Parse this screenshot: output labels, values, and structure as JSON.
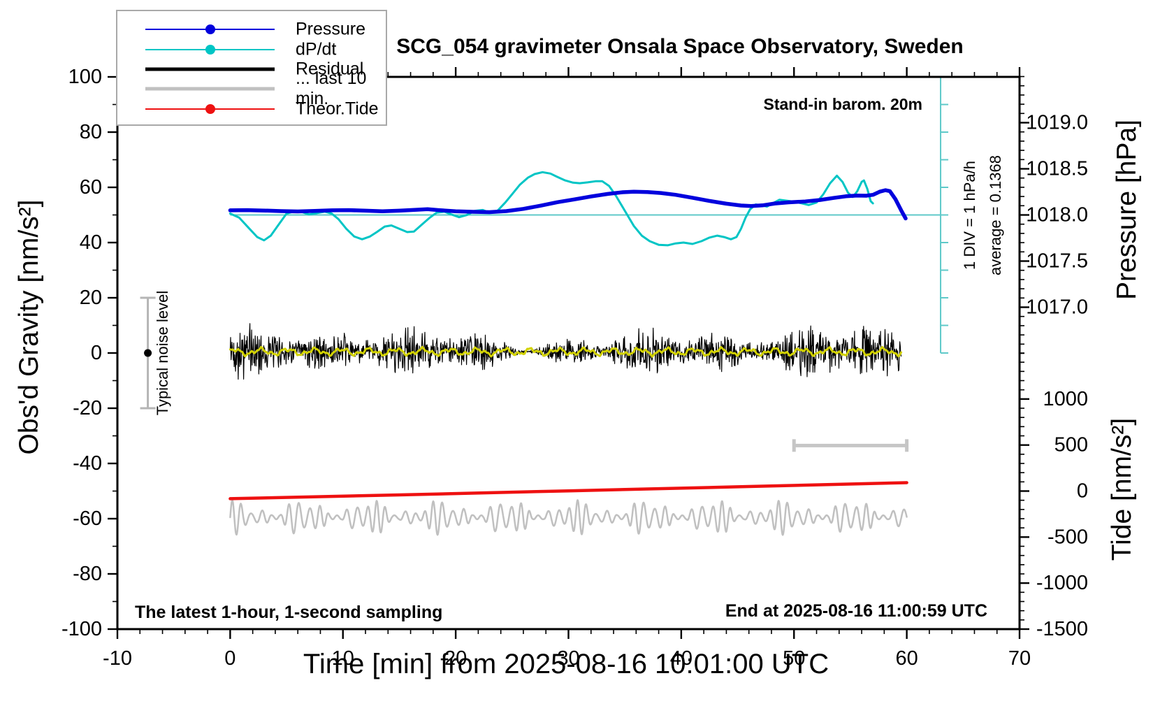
{
  "title": "SCG_054 gravimeter Onsala Space Observatory, Sweden",
  "annotations": {
    "barom": "Stand-in barom. 20m",
    "sampling": "The latest 1-hour, 1-second sampling",
    "end_time": "End at 2025-08-16 11:00:59 UTC",
    "noise_level": "Typical noise level",
    "div_scale": "1 DIV = 1 hPa/h",
    "average": "average = 0.1368"
  },
  "legend": {
    "entries": [
      {
        "label": "Pressure",
        "style": "line-dot",
        "color": "#0101dd"
      },
      {
        "label": "dP/dt",
        "style": "line-dot",
        "color": "#00c5c5"
      },
      {
        "label": "Residual",
        "style": "line-thick",
        "color": "#000000"
      },
      {
        "label": "... last 10 min.",
        "style": "line-thick",
        "color": "#c0c0c0"
      },
      {
        "label": "Theor.Tide",
        "style": "line-dot",
        "color": "#ee1111"
      }
    ]
  },
  "colors": {
    "pressure": "#0101dd",
    "dpdt": "#00c5c5",
    "residual": "#000000",
    "residual_smooth": "#d2d200",
    "last10": "#c0c0c0",
    "tide": "#ee1111",
    "noise_bar": "#b5b5b5",
    "last10_bar": "#c6c6c6",
    "axis": "#000000"
  },
  "chart_data": {
    "type": "line",
    "title": "SCG_054 gravimeter Onsala Space Observatory, Sweden",
    "axes": {
      "x": {
        "title": "Time [min] from 2025-08-16 10:01:00 UTC",
        "min": -10,
        "max": 70,
        "minor_step": 2,
        "major_ticks": [
          -10,
          0,
          10,
          20,
          30,
          40,
          50,
          60,
          70
        ],
        "labels": [
          "-10",
          "0",
          "10",
          "20",
          "30",
          "40",
          "50",
          "60",
          "70"
        ]
      },
      "gravity": {
        "title": "Obs'd Gravity [nm/s²]",
        "min": -100,
        "max": 100,
        "minor_step": 10,
        "major_ticks": [
          -100,
          -80,
          -60,
          -40,
          -20,
          0,
          20,
          40,
          60,
          80,
          100
        ],
        "labels": [
          "-100",
          "-80",
          "-60",
          "-40",
          "-20",
          "0",
          "20",
          "40",
          "60",
          "80",
          "100"
        ]
      },
      "pressure": {
        "title": "Pressure [hPa]",
        "range": [
          1016.5,
          1019.5
        ],
        "minor_step": 0.1,
        "major_ticks": [
          1017.0,
          1017.5,
          1018.0,
          1018.5,
          1019.0
        ],
        "labels": [
          "1017.0",
          "1017.5",
          "1018.0",
          "1018.5",
          "1019.0"
        ]
      },
      "tide": {
        "title": "Tide [nm/s²]",
        "range": [
          -1500,
          1500
        ],
        "minor_step": 100,
        "major_ticks": [
          -1500,
          -1000,
          -500,
          0,
          500,
          1000
        ],
        "labels": [
          "-1500",
          "-1000",
          "-500",
          "0",
          "500",
          "1000"
        ]
      }
    },
    "series": [
      {
        "name": "Pressure",
        "axis": "pressure",
        "kind": "points",
        "color": "#0101dd",
        "width": 5.5,
        "points": [
          [
            0,
            1018.05
          ],
          [
            1.5,
            1018.052
          ],
          [
            3,
            1018.048
          ],
          [
            4.5,
            1018.042
          ],
          [
            6,
            1018.038
          ],
          [
            7.5,
            1018.044
          ],
          [
            9,
            1018.05
          ],
          [
            10.5,
            1018.052
          ],
          [
            12,
            1018.046
          ],
          [
            13.5,
            1018.04
          ],
          [
            15,
            1018.046
          ],
          [
            16.5,
            1018.056
          ],
          [
            17.5,
            1018.062
          ],
          [
            18.5,
            1018.052
          ],
          [
            20,
            1018.04
          ],
          [
            21.5,
            1018.034
          ],
          [
            23,
            1018.03
          ],
          [
            24.5,
            1018.042
          ],
          [
            26,
            1018.066
          ],
          [
            27.5,
            1018.1
          ],
          [
            29,
            1018.138
          ],
          [
            30.5,
            1018.168
          ],
          [
            32,
            1018.2
          ],
          [
            33.5,
            1018.228
          ],
          [
            34.8,
            1018.246
          ],
          [
            35.8,
            1018.252
          ],
          [
            37,
            1018.248
          ],
          [
            38.2,
            1018.238
          ],
          [
            39.5,
            1018.218
          ],
          [
            41,
            1018.186
          ],
          [
            42.5,
            1018.152
          ],
          [
            44,
            1018.122
          ],
          [
            45.3,
            1018.102
          ],
          [
            46.2,
            1018.096
          ],
          [
            47.2,
            1018.104
          ],
          [
            48.3,
            1018.124
          ],
          [
            49.5,
            1018.136
          ],
          [
            51,
            1018.146
          ],
          [
            52.3,
            1018.162
          ],
          [
            53.5,
            1018.184
          ],
          [
            54.6,
            1018.202
          ],
          [
            55.6,
            1018.21
          ],
          [
            56.4,
            1018.208
          ],
          [
            57,
            1018.218
          ],
          [
            57.6,
            1018.252
          ],
          [
            58.1,
            1018.268
          ],
          [
            58.5,
            1018.258
          ],
          [
            59,
            1018.17
          ],
          [
            59.5,
            1018.05
          ],
          [
            59.9,
            1017.962
          ]
        ]
      },
      {
        "name": "dP/dt",
        "axis": "dpdt",
        "kind": "points",
        "color": "#00c5c5",
        "width": 3,
        "points": [
          [
            0,
            0.05
          ],
          [
            0.8,
            -0.1
          ],
          [
            1.6,
            -0.45
          ],
          [
            2.4,
            -0.8
          ],
          [
            3,
            -0.92
          ],
          [
            3.6,
            -0.75
          ],
          [
            4.3,
            -0.35
          ],
          [
            5,
            0.05
          ],
          [
            5.6,
            0.12
          ],
          [
            6.4,
            0.1
          ],
          [
            7,
            0.02
          ],
          [
            7.6,
            0.06
          ],
          [
            8.4,
            0.12
          ],
          [
            9,
            0.05
          ],
          [
            9.6,
            -0.15
          ],
          [
            10.3,
            -0.5
          ],
          [
            11,
            -0.78
          ],
          [
            11.7,
            -0.88
          ],
          [
            12.4,
            -0.78
          ],
          [
            13,
            -0.62
          ],
          [
            13.7,
            -0.42
          ],
          [
            14.3,
            -0.38
          ],
          [
            15,
            -0.5
          ],
          [
            15.7,
            -0.62
          ],
          [
            16.3,
            -0.6
          ],
          [
            17,
            -0.35
          ],
          [
            17.7,
            -0.1
          ],
          [
            18.3,
            0.08
          ],
          [
            19,
            0.12
          ],
          [
            19.6,
            0.02
          ],
          [
            20.3,
            -0.08
          ],
          [
            21,
            0.0
          ],
          [
            21.7,
            0.15
          ],
          [
            22.4,
            0.18
          ],
          [
            23,
            0.08
          ],
          [
            23.7,
            0.15
          ],
          [
            24.4,
            0.45
          ],
          [
            25,
            0.75
          ],
          [
            25.7,
            1.1
          ],
          [
            26.4,
            1.35
          ],
          [
            27,
            1.48
          ],
          [
            27.7,
            1.55
          ],
          [
            28.4,
            1.5
          ],
          [
            29,
            1.38
          ],
          [
            29.7,
            1.25
          ],
          [
            30.4,
            1.17
          ],
          [
            31,
            1.15
          ],
          [
            31.7,
            1.18
          ],
          [
            32.4,
            1.22
          ],
          [
            33,
            1.22
          ],
          [
            33.6,
            1.05
          ],
          [
            34.2,
            0.7
          ],
          [
            35,
            0.15
          ],
          [
            35.8,
            -0.4
          ],
          [
            36.5,
            -0.75
          ],
          [
            37.2,
            -0.95
          ],
          [
            38,
            -1.08
          ],
          [
            38.8,
            -1.1
          ],
          [
            39.5,
            -1.03
          ],
          [
            40.2,
            -1.0
          ],
          [
            41,
            -1.05
          ],
          [
            41.8,
            -0.95
          ],
          [
            42.5,
            -0.82
          ],
          [
            43.2,
            -0.75
          ],
          [
            43.8,
            -0.8
          ],
          [
            44.4,
            -0.88
          ],
          [
            44.9,
            -0.8
          ],
          [
            45.3,
            -0.5
          ],
          [
            45.7,
            -0.1
          ],
          [
            46.1,
            0.2
          ],
          [
            46.6,
            0.38
          ],
          [
            47.1,
            0.35
          ],
          [
            47.6,
            0.3
          ],
          [
            48.1,
            0.42
          ],
          [
            48.7,
            0.55
          ],
          [
            49.3,
            0.52
          ],
          [
            50,
            0.48
          ],
          [
            50.7,
            0.42
          ],
          [
            51.3,
            0.36
          ],
          [
            52,
            0.45
          ],
          [
            52.6,
            0.75
          ],
          [
            53.2,
            1.15
          ],
          [
            53.8,
            1.42
          ],
          [
            54.3,
            1.2
          ],
          [
            54.8,
            0.8
          ],
          [
            55.2,
            0.65
          ],
          [
            55.6,
            0.85
          ],
          [
            56,
            1.2
          ],
          [
            56.2,
            1.25
          ],
          [
            56.5,
            0.95
          ],
          [
            56.8,
            0.5
          ],
          [
            57,
            0.42
          ]
        ]
      },
      {
        "name": "Residual",
        "axis": "gravity",
        "kind": "noise",
        "color": "#000000",
        "width": 1.2,
        "params": {
          "t_start": 0,
          "t_end": 59.5,
          "samples": 1500,
          "center": 0.5,
          "amp_base": 4.0,
          "amp_sines": [
            [
              1.4,
              0.9,
              0.0
            ],
            [
              1.2,
              0.33,
              2.0
            ],
            [
              1.2,
              0.13,
              1.0
            ]
          ],
          "spread": 1.6,
          "seed": 42
        }
      },
      {
        "name": "Residual smooth",
        "axis": "gravity",
        "kind": "sines",
        "color": "#d2d200",
        "width": 3,
        "params": {
          "t_start": 0,
          "t_end": 59.5,
          "samples": 500,
          "center": 0.45,
          "sines": [
            [
              0.9,
              2.4,
              0.8
            ],
            [
              0.55,
              0.95,
              2.2
            ],
            [
              0.3,
              0.42,
              4.0
            ]
          ]
        }
      },
      {
        "name": "... last 10 min.",
        "axis": "tide",
        "kind": "carrier",
        "color": "#c0c0c0",
        "width": 2.5,
        "params": {
          "t_start": 0,
          "t_end": 60,
          "samples": 1600,
          "center": -285,
          "carrier_period": 0.85,
          "fm_depth": 0.8,
          "fm_period": 4.4,
          "amp_base": 88,
          "amp_sines": [
            [
              62,
              6.1,
              1.3
            ],
            [
              44,
              2.55,
              0.5
            ]
          ],
          "amp_min": 22
        }
      },
      {
        "name": "Theor.Tide",
        "axis": "tide",
        "kind": "points",
        "color": "#ee1111",
        "width": 4.5,
        "points": [
          [
            0,
            -83
          ],
          [
            15,
            -42
          ],
          [
            30,
            2
          ],
          [
            45,
            46
          ],
          [
            60,
            91
          ]
        ]
      }
    ],
    "markers": {
      "dpdt_zero_line": {
        "t0": 0,
        "t1": 63,
        "dpdt_value": 0,
        "color": "#5fc9c9",
        "width": 2
      },
      "dpdt_scale_bar": {
        "t": 63,
        "dpdt_from": -5,
        "dpdt_to": 5,
        "div_step": 1,
        "tick_len": 11,
        "color": "#5fc9c9",
        "width": 2
      },
      "noise_bar": {
        "t": -7.3,
        "gravity_min": -20,
        "gravity_max": 20,
        "dot_gravity": 0,
        "cap_halfwidth": 11,
        "color": "#b5b5b5",
        "dot_color": "#000000"
      },
      "last10_bar": {
        "t0": 50,
        "t1": 60,
        "gravity": -33.5,
        "cap_halfheight": 9,
        "color": "#c6c6c6",
        "width": 5
      }
    },
    "layout_hints": {
      "grid": false,
      "legend_position": "top-left",
      "notes": "left axis: gravity -100..100; right top half: pressure 1016.5..1019.5 hPa; right bottom half: tide -1500..1500 nm/s2; dP/dt plotted about line at gravity=50, 1 DIV = 1 hPa/h"
    }
  }
}
